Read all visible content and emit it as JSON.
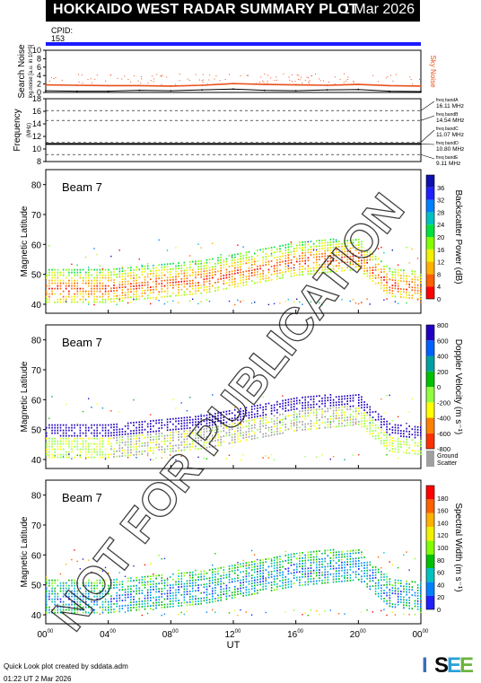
{
  "header": {
    "title": "HOKKAIDO WEST RADAR SUMMARY PLOT",
    "date": "1 Mar 2026",
    "cpid_label": "CPID:",
    "cpid_value": "153"
  },
  "colors": {
    "cpid_bar": "#1a1aff",
    "sky_noise": "#e8501a",
    "search_noise": "#000000",
    "ground_scatter": "#a0a0a0"
  },
  "chart_data": [
    {
      "type": "line",
      "name": "search-noise",
      "ylabel": "Search Noise",
      "ylabel_sub": "log.noise [a.u. in 10^5]",
      "legend": "Sky Noise",
      "ylim": [
        0,
        10
      ],
      "yticks": [
        0,
        2,
        4,
        6,
        8,
        10
      ],
      "series": [
        {
          "name": "Sky Noise",
          "x": [
            0,
            2,
            4,
            6,
            8,
            10,
            12,
            14,
            16,
            18,
            20,
            22,
            24
          ],
          "values": [
            1.8,
            1.7,
            1.6,
            1.6,
            1.5,
            1.7,
            2.1,
            1.9,
            1.8,
            1.7,
            1.9,
            1.6,
            1.5
          ]
        },
        {
          "name": "Search Noise",
          "x": [
            0,
            2,
            4,
            6,
            8,
            10,
            12,
            14,
            16,
            18,
            20,
            22,
            24
          ],
          "values": [
            0.4,
            0.3,
            0.3,
            0.5,
            0.4,
            0.6,
            0.8,
            0.5,
            0.4,
            0.6,
            0.7,
            0.3,
            0.2
          ]
        }
      ]
    },
    {
      "type": "line",
      "name": "frequency",
      "ylabel": "Frequency",
      "ylabel_sub": "(MHz)",
      "ylim": [
        8,
        18
      ],
      "yticks": [
        8,
        10,
        12,
        14,
        16,
        18
      ],
      "freq_bands": [
        {
          "name": "freq bandA",
          "value": "16.11 MHz",
          "mhz": 16.11
        },
        {
          "name": "freq bandB",
          "value": "14.54 MHz",
          "mhz": 14.54
        },
        {
          "name": "freq bandC",
          "value": "11.07 MHz",
          "mhz": 11.07
        },
        {
          "name": "freq bandD",
          "value": "10.80 MHz",
          "mhz": 10.8
        },
        {
          "name": "freq bandE",
          "value": "9.11 MHz",
          "mhz": 9.11
        }
      ],
      "series": [
        {
          "name": "operating frequency",
          "x": [
            0,
            24
          ],
          "values": [
            10.8,
            10.8
          ]
        }
      ]
    },
    {
      "type": "heatmap",
      "name": "backscatter-power",
      "beam": "Beam 7",
      "ylabel": "Magnetic Latitude",
      "ylim": [
        37,
        85
      ],
      "yticks": [
        40,
        50,
        60,
        70,
        80
      ],
      "colorbar_label": "Backscatter Power (dB)",
      "colorbar_ticks": [
        "0",
        "4",
        "8",
        "12",
        "16",
        "20",
        "24",
        "28",
        "32",
        "36"
      ],
      "band_lower": [
        43,
        43,
        43,
        44,
        45,
        46,
        48,
        50,
        52,
        53,
        54,
        45,
        44
      ],
      "band_upper": [
        48,
        48,
        48,
        49,
        50,
        51,
        53,
        55,
        57,
        58,
        58,
        48,
        47
      ]
    },
    {
      "type": "heatmap",
      "name": "doppler-velocity",
      "beam": "Beam 7",
      "ylabel": "Magnetic Latitude",
      "ylim": [
        37,
        85
      ],
      "yticks": [
        40,
        50,
        60,
        70,
        80
      ],
      "colorbar_label": "Doppler Velocity (m s⁻¹)",
      "colorbar_ticks": [
        "-800",
        "-600",
        "-400",
        "-200",
        "0",
        "200",
        "400",
        "600",
        "800"
      ],
      "ground_scatter_label": "Ground Scatter",
      "band_lower": [
        43,
        43,
        43,
        44,
        45,
        46,
        48,
        50,
        52,
        53,
        54,
        45,
        44
      ],
      "band_upper": [
        48,
        48,
        48,
        49,
        50,
        51,
        53,
        55,
        57,
        58,
        58,
        48,
        47
      ]
    },
    {
      "type": "heatmap",
      "name": "spectral-width",
      "beam": "Beam 7",
      "ylabel": "Magnetic Latitude",
      "ylim": [
        37,
        85
      ],
      "yticks": [
        40,
        50,
        60,
        70,
        80
      ],
      "colorbar_label": "Spectral Width (m s⁻¹)",
      "colorbar_ticks": [
        "0",
        "20",
        "40",
        "60",
        "80",
        "100",
        "120",
        "140",
        "160",
        "180"
      ],
      "band_lower": [
        43,
        43,
        43,
        44,
        45,
        46,
        48,
        50,
        52,
        53,
        54,
        45,
        44
      ],
      "band_upper": [
        48,
        48,
        48,
        49,
        50,
        51,
        53,
        55,
        57,
        58,
        58,
        48,
        47
      ]
    }
  ],
  "time_axis": {
    "xlabel": "UT",
    "xlim": [
      0,
      24
    ],
    "ticks": [
      {
        "hour": 0,
        "label": "00",
        "sup": "00"
      },
      {
        "hour": 4,
        "label": "04",
        "sup": "00"
      },
      {
        "hour": 8,
        "label": "08",
        "sup": "00"
      },
      {
        "hour": 12,
        "label": "12",
        "sup": "00"
      },
      {
        "hour": 16,
        "label": "16",
        "sup": "00"
      },
      {
        "hour": 20,
        "label": "20",
        "sup": "00"
      },
      {
        "hour": 24,
        "label": "00",
        "sup": "00"
      }
    ]
  },
  "watermark": "NOT FOR PUBLICATION",
  "footer": {
    "credit": "Quick Look plot created by sddata.adm",
    "generated": "01:22 UT  2 Mar 2026"
  },
  "logo": {
    "text": "ISEE",
    "letters": [
      "I",
      "S",
      "E",
      "E"
    ],
    "colors": [
      "#3a6fb8",
      "#0a0a0a",
      "#2aa0d8",
      "#6cb33e"
    ]
  }
}
